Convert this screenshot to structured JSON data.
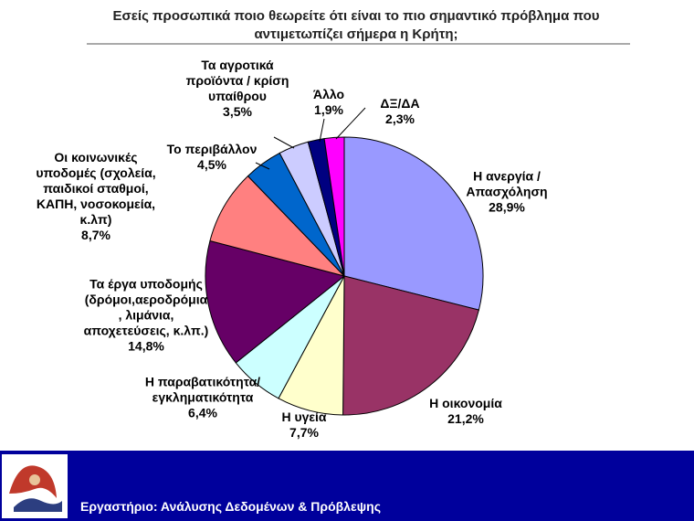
{
  "chart_data": {
    "type": "pie",
    "title": "Εσείς προσωπικά ποιο θεωρείτε ότι είναι το πιο σημαντικό πρόβλημα που\nαντιμετωπίζει σήμερα η Κρήτη;",
    "categories": [
      "Η ανεργία /\nΑπασχόληση",
      "Η οικονομία",
      "Η υγεία",
      "Η παραβατικότητα/\nεγκληματικότητα",
      "Τα έργα υποδομής\n(δρόμοι,αεροδρόμια\n, λιμάνια,\nαποχετεύσεις, κ.λπ.)",
      "Οι κοινωνικές\nυποδομές (σχολεία,\nπαιδικοί σταθμοί,\nΚΑΠΗ, νοσοκομεία,\nκ.λπ)",
      "Το περιβάλλον",
      "Τα αγροτικά\nπροϊόντα / κρίση\nυπαίθρου",
      "Άλλο",
      "ΔΞ/ΔΑ"
    ],
    "values": [
      28.9,
      21.2,
      7.7,
      6.4,
      14.8,
      8.7,
      4.5,
      3.5,
      1.9,
      2.3
    ],
    "value_labels": [
      "28,9%",
      "21,2%",
      "7,7%",
      "6,4%",
      "14,8%",
      "8,7%",
      "4,5%",
      "3,5%",
      "1,9%",
      "2,3%"
    ],
    "colors": [
      "#9999ff",
      "#993366",
      "#ffffcc",
      "#ccffff",
      "#660066",
      "#ff8080",
      "#0066cc",
      "#ccccff",
      "#000080",
      "#ff00ff"
    ]
  },
  "footer": {
    "text": "Εργαστήριο: Ανάλυσης Δεδομένων & Πρόβλεψης"
  }
}
